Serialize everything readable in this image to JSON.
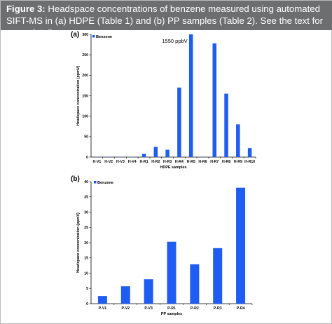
{
  "caption": {
    "label": "Figure 3:",
    "text": " Headspace concentrations of benzene measured using automated SIFT-MS in (a) HDPE (Table 1) and (b) PP samples (Table 2). See the text for more details."
  },
  "colors": {
    "bar": "#1f5cf2",
    "header_bg": "#6d6e70",
    "header_text": "#ffffff"
  },
  "chart_data": [
    {
      "type": "bar",
      "panel_label": "(a)",
      "legend": "Benzene",
      "categories": [
        "H-V1",
        "H-V2",
        "H-V3",
        "H-V4",
        "H-R1",
        "H-R2",
        "H-R3",
        "H-R4",
        "H-R5",
        "H-R6",
        "H-R7",
        "H-R8",
        "H-R9",
        "H-R10"
      ],
      "values": [
        0.2,
        1,
        0.2,
        0.2,
        8,
        25,
        18,
        170,
        300,
        1,
        278,
        155,
        80,
        22
      ],
      "ylim": [
        0,
        300
      ],
      "yticks": [
        "0",
        "50",
        "100",
        "150",
        "200",
        "250",
        "300"
      ],
      "xlabel": "HDPE samples",
      "ylabel": "Headspace concentration (ppmV)",
      "annotation": "1550 ppbV",
      "grid": false,
      "legend_position": "top-left"
    },
    {
      "type": "bar",
      "panel_label": "(b)",
      "legend": "Benzene",
      "categories": [
        "P-V1",
        "P-V2",
        "P-V3",
        "P-R1",
        "P-R2",
        "P-R3",
        "P-R4"
      ],
      "values": [
        2.5,
        5.7,
        8.0,
        20.3,
        12.9,
        18.2,
        38.0
      ],
      "ylim": [
        0,
        40
      ],
      "yticks": [
        "0",
        "5",
        "10",
        "15",
        "20",
        "25",
        "30",
        "35",
        "40"
      ],
      "xlabel": "PP samples",
      "ylabel": "Headspace concentration (ppmV)",
      "grid": false,
      "legend_position": "top-left"
    }
  ]
}
